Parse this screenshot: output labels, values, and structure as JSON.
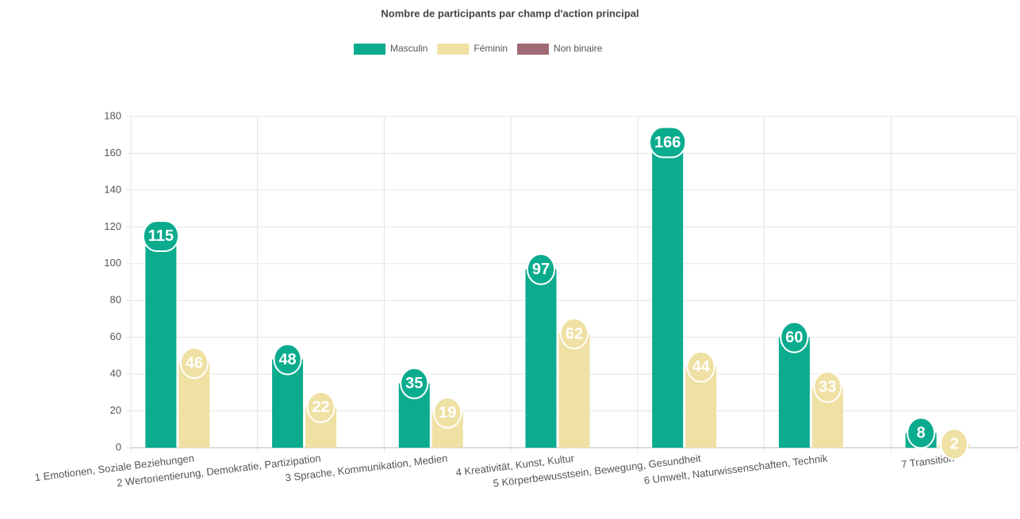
{
  "chart_data": {
    "type": "bar",
    "title": "Nombre de participants par champ d'action principal",
    "categories": [
      "1 Emotionen, Soziale Beziehungen",
      "2 Wertorientierung, Demokratie, Partizipation",
      "3 Sprache, Kommunikation, Medien",
      "4 Kreativität, Kunst, Kultur",
      "5 Körperbewusstsein, Bewegung, Gesundheit",
      "6 Umwelt, Naturwissenschaften, Technik",
      "7 Transition"
    ],
    "series": [
      {
        "name": "Masculin",
        "color": "#0bab8e",
        "values": [
          115,
          48,
          35,
          97,
          166,
          60,
          8
        ]
      },
      {
        "name": "Féminin",
        "color": "#efe0a3",
        "values": [
          46,
          22,
          19,
          62,
          44,
          33,
          2
        ]
      },
      {
        "name": "Non binaire",
        "color": "#a06a74",
        "values": [
          null,
          null,
          null,
          null,
          null,
          null,
          null
        ]
      }
    ],
    "ylim": [
      0,
      180
    ],
    "yticks": [
      0,
      20,
      40,
      60,
      80,
      100,
      120,
      140,
      160,
      180
    ],
    "grid": true,
    "legend": "top"
  }
}
